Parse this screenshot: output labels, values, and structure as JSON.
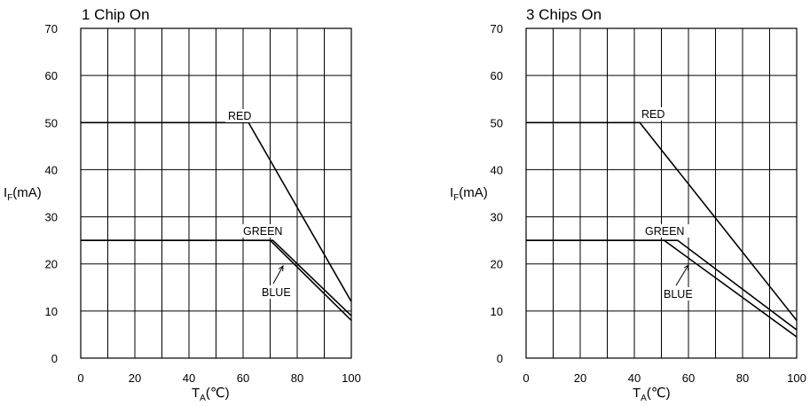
{
  "chart_data": [
    {
      "type": "line",
      "title": "1 Chip On",
      "xlabel": "TA(℃)",
      "xlabel_main": "T",
      "xlabel_sub": "A",
      "xlabel_tail": "(℃)",
      "ylabel": "IF(mA)",
      "ylabel_main": "I",
      "ylabel_sub": "F",
      "ylabel_tail": "(mA)",
      "xlim": [
        0,
        100
      ],
      "ylim": [
        0,
        70
      ],
      "xticks": [
        0,
        20,
        40,
        60,
        80,
        100
      ],
      "yticks": [
        0,
        10,
        20,
        30,
        40,
        50,
        60,
        70
      ],
      "grid": true,
      "series": [
        {
          "name": "RED",
          "x": [
            0,
            62,
            100
          ],
          "y": [
            50,
            50,
            12
          ]
        },
        {
          "name": "GREEN",
          "x": [
            0,
            71,
            100
          ],
          "y": [
            25,
            25,
            9
          ]
        },
        {
          "name": "BLUE",
          "x": [
            0,
            70,
            100
          ],
          "y": [
            25,
            25,
            8
          ]
        }
      ]
    },
    {
      "type": "line",
      "title": "3 Chips On",
      "xlabel": "TA(℃)",
      "xlabel_main": "T",
      "xlabel_sub": "A",
      "xlabel_tail": "(℃)",
      "ylabel": "IF(mA)",
      "ylabel_main": "I",
      "ylabel_sub": "F",
      "ylabel_tail": "(mA)",
      "xlim": [
        0,
        100
      ],
      "ylim": [
        0,
        70
      ],
      "xticks": [
        0,
        20,
        40,
        60,
        80,
        100
      ],
      "yticks": [
        0,
        10,
        20,
        30,
        40,
        50,
        60,
        70
      ],
      "grid": true,
      "series": [
        {
          "name": "RED",
          "x": [
            0,
            42,
            100
          ],
          "y": [
            50,
            50,
            8
          ]
        },
        {
          "name": "GREEN",
          "x": [
            0,
            56,
            100
          ],
          "y": [
            25,
            25,
            6
          ]
        },
        {
          "name": "BLUE",
          "x": [
            0,
            51,
            100
          ],
          "y": [
            25,
            25,
            4.5
          ]
        }
      ]
    }
  ]
}
